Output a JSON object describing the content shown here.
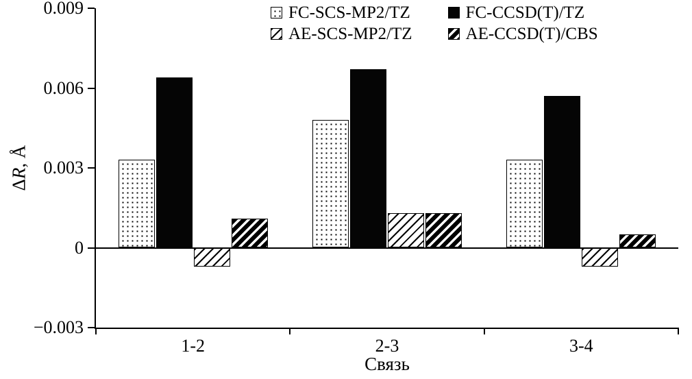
{
  "chart_data": {
    "type": "bar",
    "title": "",
    "categories": [
      "1-2",
      "2-3",
      "3-4"
    ],
    "series": [
      {
        "name": "FC-SCS-MP2/TZ",
        "pattern": "dots",
        "values": [
          0.0033,
          0.0048,
          0.0033
        ]
      },
      {
        "name": "FC-CCSD(T)/TZ",
        "pattern": "solid",
        "values": [
          0.0064,
          0.0067,
          0.0057
        ]
      },
      {
        "name": "AE-SCS-MP2/TZ",
        "pattern": "hatch-light",
        "values": [
          -0.0007,
          0.0013,
          -0.0007
        ]
      },
      {
        "name": "AE-CCSD(T)/CBS",
        "pattern": "hatch-dense",
        "values": [
          0.0011,
          0.0013,
          0.0005
        ]
      }
    ],
    "xlabel": "Связь",
    "ylabel": "ΔR, Å",
    "ylabel_parts": {
      "delta": "Δ",
      "symbol": "R",
      "rest": ", Å"
    },
    "ylim": [
      -0.003,
      0.009
    ],
    "yticks": [
      {
        "value": 0.009,
        "label": "0.009"
      },
      {
        "value": 0.006,
        "label": "0.006"
      },
      {
        "value": 0.003,
        "label": "0.003"
      },
      {
        "value": 0,
        "label": "0"
      },
      {
        "value": -0.003,
        "label": "−0.003"
      }
    ],
    "grid": false,
    "legend_position": "top",
    "colors": {
      "foreground": "#000000",
      "background": "#ffffff"
    }
  }
}
